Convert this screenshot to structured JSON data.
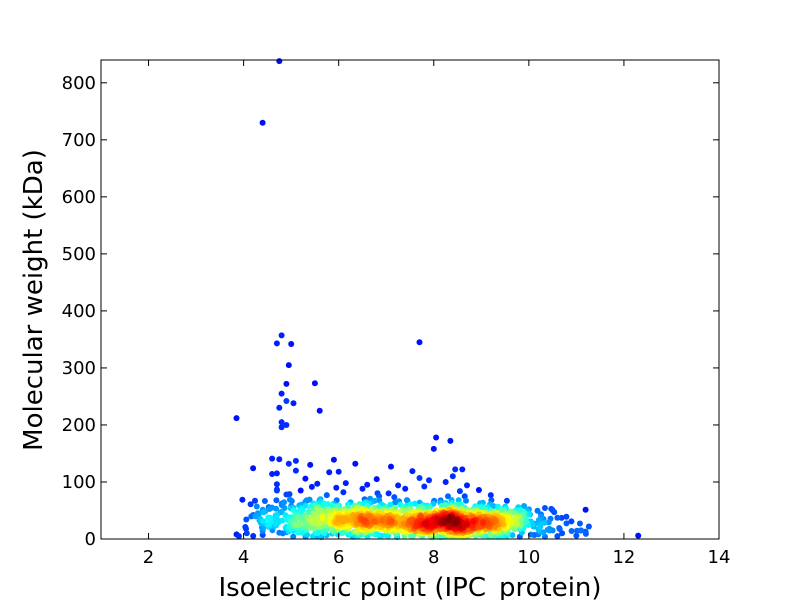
{
  "chart_data": {
    "type": "scatter",
    "title": "",
    "xlabel": "Isoelectric point (IPC_protein)",
    "ylabel": "Molecular weight (kDa)",
    "xlim": [
      1,
      14
    ],
    "ylim": [
      0,
      840
    ],
    "xticks": [
      2,
      4,
      6,
      8,
      10,
      12,
      14
    ],
    "yticks": [
      0,
      100,
      200,
      300,
      400,
      500,
      600,
      700,
      800
    ],
    "grid": false,
    "legend": "none",
    "colormap": "jet (point density)",
    "colors": {
      "low_density": "#0000a8",
      "mid_low": "#0080ff",
      "mid": "#40ffb0",
      "mid_high": "#ffd000",
      "high_density": "#a00000"
    },
    "points": [
      [
        4.75,
        838
      ],
      [
        4.4,
        730
      ],
      [
        7.7,
        345
      ],
      [
        4.8,
        357
      ],
      [
        4.7,
        343
      ],
      [
        5.0,
        342
      ],
      [
        4.95,
        305
      ],
      [
        5.5,
        273
      ],
      [
        4.9,
        272
      ],
      [
        4.8,
        255
      ],
      [
        4.9,
        242
      ],
      [
        5.05,
        238
      ],
      [
        4.75,
        230
      ],
      [
        5.6,
        225
      ],
      [
        3.85,
        212
      ],
      [
        4.8,
        205
      ],
      [
        4.9,
        200
      ],
      [
        4.8,
        196
      ],
      [
        8.05,
        178
      ],
      [
        8.35,
        172
      ],
      [
        8.0,
        158
      ],
      [
        4.6,
        141
      ],
      [
        4.75,
        140
      ],
      [
        5.9,
        139
      ],
      [
        5.1,
        137
      ],
      [
        4.95,
        132
      ],
      [
        6.35,
        132
      ],
      [
        5.4,
        130
      ],
      [
        7.1,
        127
      ],
      [
        4.2,
        124
      ],
      [
        8.45,
        122
      ],
      [
        8.6,
        122
      ],
      [
        5.1,
        120
      ],
      [
        7.55,
        119
      ],
      [
        6.0,
        118
      ],
      [
        5.8,
        117
      ],
      [
        4.7,
        115
      ],
      [
        4.6,
        114
      ],
      [
        8.4,
        110
      ],
      [
        7.7,
        107
      ],
      [
        5.3,
        106
      ],
      [
        6.8,
        105
      ],
      [
        7.9,
        103
      ],
      [
        8.25,
        100
      ],
      [
        6.15,
        98
      ],
      [
        4.7,
        96
      ],
      [
        5.55,
        97
      ],
      [
        6.6,
        95
      ],
      [
        7.25,
        94
      ],
      [
        7.8,
        92
      ],
      [
        8.7,
        94
      ],
      [
        5.95,
        90
      ],
      [
        6.5,
        88
      ],
      [
        7.4,
        88
      ],
      [
        8.95,
        86
      ],
      [
        4.7,
        85
      ],
      [
        5.2,
        85
      ],
      [
        8.55,
        84
      ],
      [
        6.1,
        82
      ],
      [
        7.05,
        80
      ],
      [
        4.9,
        78
      ],
      [
        5.75,
        77
      ],
      [
        9.2,
        77
      ],
      [
        6.85,
        75
      ],
      [
        8.3,
        75
      ],
      [
        4.3,
        45
      ],
      [
        4.45,
        48
      ],
      [
        4.2,
        42
      ],
      [
        4.05,
        18
      ],
      [
        3.85,
        8
      ],
      [
        3.9,
        5
      ],
      [
        4.35,
        35
      ],
      [
        4.5,
        25
      ],
      [
        4.4,
        14
      ],
      [
        4.6,
        55
      ],
      [
        4.8,
        62
      ],
      [
        5.0,
        58
      ],
      [
        5.3,
        65
      ],
      [
        5.6,
        68
      ],
      [
        5.9,
        62
      ],
      [
        6.2,
        60
      ],
      [
        6.6,
        58
      ],
      [
        7.0,
        55
      ],
      [
        7.3,
        60
      ],
      [
        7.6,
        62
      ],
      [
        8.0,
        65
      ],
      [
        8.5,
        60
      ],
      [
        8.9,
        55
      ],
      [
        9.2,
        50
      ],
      [
        9.5,
        45
      ],
      [
        9.8,
        40
      ],
      [
        10.0,
        43
      ],
      [
        10.1,
        22
      ],
      [
        10.3,
        12
      ],
      [
        10.5,
        15
      ],
      [
        10.7,
        10
      ],
      [
        10.9,
        14
      ],
      [
        11.1,
        15
      ],
      [
        11.2,
        9
      ],
      [
        10.6,
        5
      ],
      [
        11.0,
        6
      ],
      [
        12.3,
        6
      ],
      [
        9.9,
        28
      ],
      [
        10.2,
        8
      ],
      [
        9.7,
        20
      ],
      [
        5.2,
        45
      ],
      [
        5.5,
        40
      ],
      [
        5.8,
        48
      ],
      [
        6.3,
        42
      ],
      [
        6.8,
        45
      ],
      [
        7.1,
        40
      ],
      [
        5.0,
        30
      ],
      [
        5.4,
        20
      ],
      [
        6.0,
        25
      ],
      [
        6.5,
        22
      ],
      [
        7.0,
        28
      ],
      [
        7.5,
        20
      ],
      [
        8.0,
        18
      ],
      [
        8.8,
        15
      ],
      [
        9.3,
        18
      ],
      [
        4.9,
        12
      ],
      [
        5.7,
        10
      ],
      [
        6.4,
        8
      ],
      [
        7.2,
        9
      ],
      [
        7.8,
        10
      ],
      [
        9.0,
        8
      ]
    ],
    "dense_clusters": [
      {
        "cx": 8.5,
        "cy": 30,
        "sx": 0.9,
        "sy": 14,
        "n": 650
      },
      {
        "cx": 7.2,
        "cy": 32,
        "sx": 1.4,
        "sy": 17,
        "n": 500
      },
      {
        "cx": 5.8,
        "cy": 38,
        "sx": 0.9,
        "sy": 18,
        "n": 300
      }
    ]
  }
}
